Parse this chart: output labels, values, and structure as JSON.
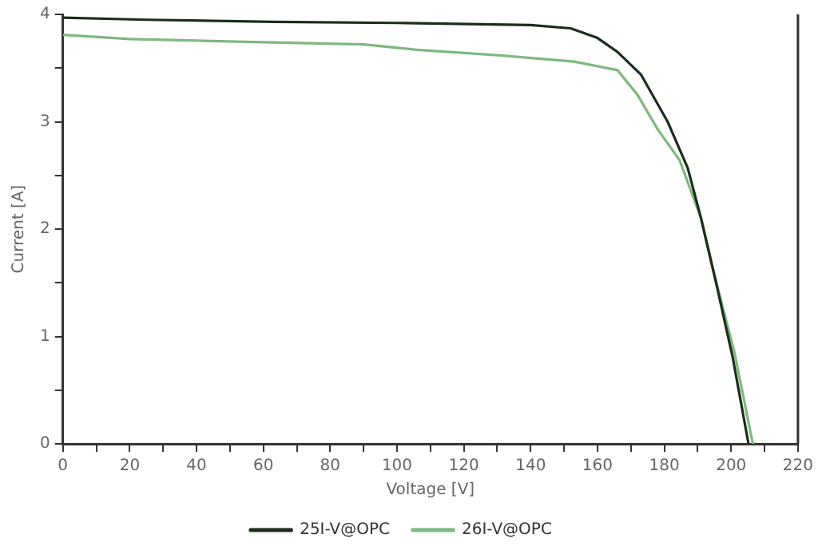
{
  "chart_data": {
    "type": "line",
    "xlabel": "Voltage [V]",
    "ylabel": "Current [A]",
    "xlim": [
      0,
      220
    ],
    "ylim": [
      0,
      4
    ],
    "xticks": [
      0,
      {
        "value": 10,
        "label": null
      },
      20,
      {
        "value": 30,
        "label": null
      },
      40,
      {
        "value": 50,
        "label": null
      },
      60,
      {
        "value": 70,
        "label": null
      },
      80,
      {
        "value": 90,
        "label": null
      },
      100,
      {
        "value": 110,
        "label": null
      },
      120,
      {
        "value": 130,
        "label": null
      },
      140,
      {
        "value": 150,
        "label": null
      },
      160,
      {
        "value": 170,
        "label": null
      },
      180,
      {
        "value": 190,
        "label": null
      },
      200,
      {
        "value": 210,
        "label": null
      },
      220
    ],
    "yticks": [
      0,
      {
        "value": 0.5,
        "label": null
      },
      1,
      {
        "value": 1.5,
        "label": null
      },
      2,
      {
        "value": 2.5,
        "label": null
      },
      3,
      {
        "value": 3.5,
        "label": null
      },
      4
    ],
    "grid": false,
    "legend": "bottom",
    "marker": "none",
    "line_style": "solid",
    "series": [
      {
        "name": "25I-V@OPC",
        "color": "#1a2e1a",
        "x": [
          0,
          25,
          63,
          100,
          140,
          152,
          160,
          166,
          173,
          181,
          187,
          191,
          196,
          200.5,
          205.2
        ],
        "values": [
          3.97,
          3.95,
          3.93,
          3.92,
          3.9,
          3.87,
          3.78,
          3.65,
          3.44,
          3.0,
          2.57,
          2.1,
          1.43,
          0.8,
          0
        ]
      },
      {
        "name": "26I-V@OPC",
        "color": "#7fb87f",
        "x": [
          0,
          20,
          60,
          90,
          106,
          130,
          153,
          166,
          172,
          178,
          184.6,
          191,
          196,
          201,
          206.5
        ],
        "values": [
          3.81,
          3.77,
          3.74,
          3.72,
          3.67,
          3.62,
          3.56,
          3.48,
          3.25,
          2.93,
          2.64,
          2.1,
          1.45,
          0.85,
          0
        ]
      }
    ]
  }
}
